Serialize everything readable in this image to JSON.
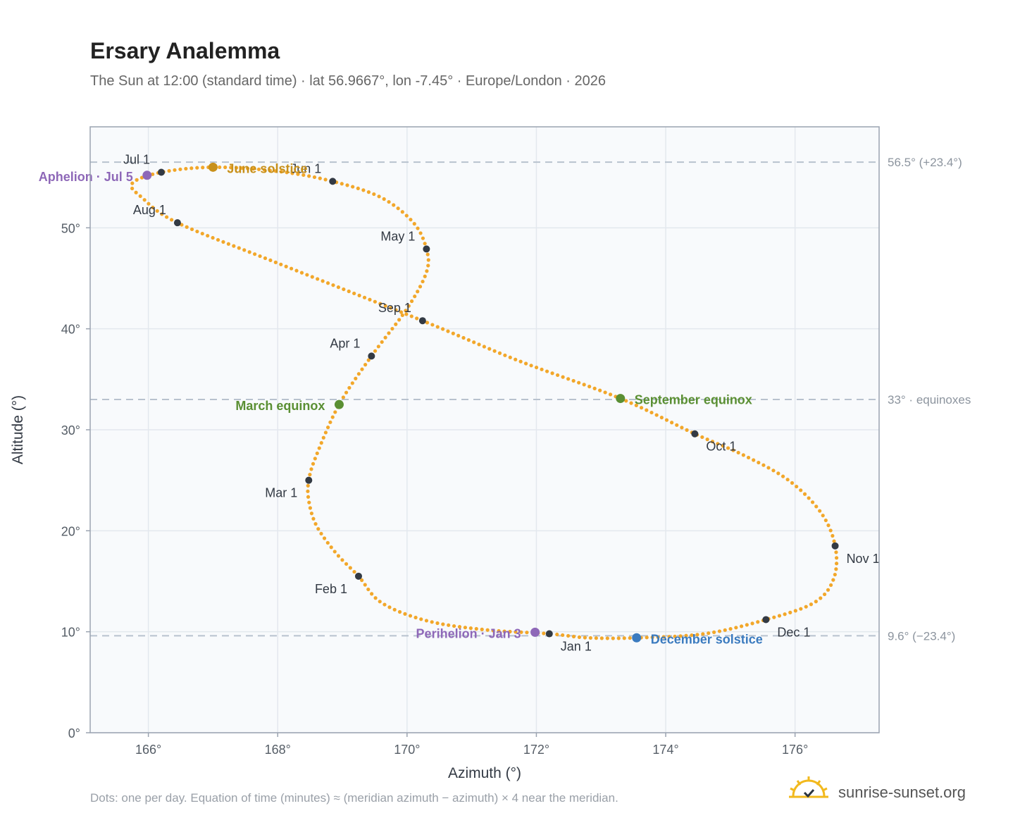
{
  "title": "Ersary Analemma",
  "subtitle": "The Sun at 12:00 (standard time) · lat 56.9667°, lon -7.45° · Europe/London · 2026",
  "footnote": "Dots: one per day. Equation of time (minutes) ≈ (meridian azimuth − azimuth) × 4 near the meridian.",
  "brand": {
    "name": "sunrise-sunset.org",
    "icon": "sun-logo-icon"
  },
  "colors": {
    "curve": "#f2a72a",
    "month_dot": "#333a44",
    "solstice_june": "#c8901a",
    "equinox": "#5a8f33",
    "solstice_december": "#3b7bbf",
    "apsis": "#8e68b8",
    "reference_line": "#b8c2ce",
    "grid": "#e3e8ee",
    "plot_bg": "#f8fafc",
    "frame": "#9aa3b0"
  },
  "chart_data": {
    "type": "scatter",
    "xlabel": "Azimuth (°)",
    "ylabel": "Altitude (°)",
    "xlim": [
      165.1,
      177.3
    ],
    "ylim": [
      0,
      60
    ],
    "x_ticks": [
      166,
      168,
      170,
      172,
      174,
      176
    ],
    "x_tick_labels": [
      "166°",
      "168°",
      "170°",
      "172°",
      "174°",
      "176°"
    ],
    "y_ticks": [
      0,
      10,
      20,
      30,
      40,
      50
    ],
    "y_tick_labels": [
      "0°",
      "10°",
      "20°",
      "30°",
      "40°",
      "50°"
    ],
    "grid": true,
    "path": [
      [
        172.2,
        9.8
      ],
      [
        171.2,
        10.2
      ],
      [
        170.3,
        11.1
      ],
      [
        169.6,
        12.9
      ],
      [
        169.25,
        15.5
      ],
      [
        168.9,
        17.8
      ],
      [
        168.6,
        20.5
      ],
      [
        168.48,
        23.0
      ],
      [
        168.48,
        25.0
      ],
      [
        168.6,
        27.5
      ],
      [
        168.95,
        32.5
      ],
      [
        169.45,
        37.3
      ],
      [
        170.0,
        42.0
      ],
      [
        170.3,
        45.6
      ],
      [
        170.3,
        47.9
      ],
      [
        170.1,
        50.5
      ],
      [
        169.6,
        53.0
      ],
      [
        168.85,
        54.6
      ],
      [
        168.0,
        55.6
      ],
      [
        167.0,
        56.0
      ],
      [
        166.2,
        55.5
      ],
      [
        165.75,
        54.4
      ],
      [
        165.9,
        53.0
      ],
      [
        166.45,
        50.5
      ],
      [
        168.0,
        46.5
      ],
      [
        170.24,
        40.8
      ],
      [
        171.7,
        36.9
      ],
      [
        173.3,
        33.1
      ],
      [
        174.45,
        29.6
      ],
      [
        175.2,
        27.5
      ],
      [
        175.9,
        25.0
      ],
      [
        176.4,
        21.8
      ],
      [
        176.62,
        18.5
      ],
      [
        176.6,
        15.3
      ],
      [
        176.3,
        12.9
      ],
      [
        175.55,
        11.2
      ],
      [
        174.6,
        9.8
      ],
      [
        173.55,
        9.4
      ],
      [
        172.8,
        9.4
      ],
      [
        172.2,
        9.8
      ]
    ],
    "months": [
      {
        "label": "Jan 1",
        "x": 172.2,
        "y": 9.8,
        "anchor": "start",
        "dx": 16,
        "dy": 24
      },
      {
        "label": "Feb 1",
        "x": 169.25,
        "y": 15.5,
        "anchor": "end",
        "dx": -16,
        "dy": 24
      },
      {
        "label": "Mar 1",
        "x": 168.48,
        "y": 25.0,
        "anchor": "end",
        "dx": -16,
        "dy": 24
      },
      {
        "label": "Apr 1",
        "x": 169.45,
        "y": 37.3,
        "anchor": "end",
        "dx": -16,
        "dy": -12
      },
      {
        "label": "May 1",
        "x": 170.3,
        "y": 47.9,
        "anchor": "end",
        "dx": -16,
        "dy": -12
      },
      {
        "label": "Jun 1",
        "x": 168.85,
        "y": 54.6,
        "anchor": "end",
        "dx": -16,
        "dy": -12
      },
      {
        "label": "Jul 1",
        "x": 166.2,
        "y": 55.5,
        "anchor": "end",
        "dx": -16,
        "dy": -12
      },
      {
        "label": "Aug 1",
        "x": 166.45,
        "y": 50.5,
        "anchor": "end",
        "dx": -16,
        "dy": -12
      },
      {
        "label": "Sep 1",
        "x": 170.24,
        "y": 40.8,
        "anchor": "end",
        "dx": -16,
        "dy": -12
      },
      {
        "label": "Oct 1",
        "x": 174.45,
        "y": 29.6,
        "anchor": "start",
        "dx": 16,
        "dy": 24
      },
      {
        "label": "Nov 1",
        "x": 176.62,
        "y": 18.5,
        "anchor": "start",
        "dx": 16,
        "dy": 24
      },
      {
        "label": "Dec 1",
        "x": 175.55,
        "y": 11.2,
        "anchor": "start",
        "dx": 16,
        "dy": 24
      }
    ],
    "events": [
      {
        "label": "June solstice",
        "x": 167.0,
        "y": 56.0,
        "color_key": "solstice_june",
        "anchor": "start",
        "dx": 20,
        "dy": 8
      },
      {
        "label": "March equinox",
        "x": 168.95,
        "y": 32.5,
        "color_key": "equinox",
        "anchor": "end",
        "dx": -20,
        "dy": 8
      },
      {
        "label": "September equinox",
        "x": 173.3,
        "y": 33.1,
        "color_key": "equinox",
        "anchor": "start",
        "dx": 20,
        "dy": 8
      },
      {
        "label": "December solstice",
        "x": 173.55,
        "y": 9.4,
        "color_key": "solstice_december",
        "anchor": "start",
        "dx": 20,
        "dy": 8
      },
      {
        "label": "Aphelion · Jul 5",
        "x": 165.98,
        "y": 55.2,
        "color_key": "apsis",
        "anchor": "end",
        "dx": -20,
        "dy": 8
      },
      {
        "label": "Perihelion · Jan 3",
        "x": 171.98,
        "y": 9.95,
        "color_key": "apsis",
        "anchor": "end",
        "dx": -20,
        "dy": 8
      }
    ],
    "reference_lines": [
      {
        "y": 56.5,
        "label": "56.5° (+23.4°)"
      },
      {
        "y": 33.0,
        "label": "33° · equinoxes"
      },
      {
        "y": 9.6,
        "label": "9.6° (−23.4°)"
      }
    ]
  }
}
